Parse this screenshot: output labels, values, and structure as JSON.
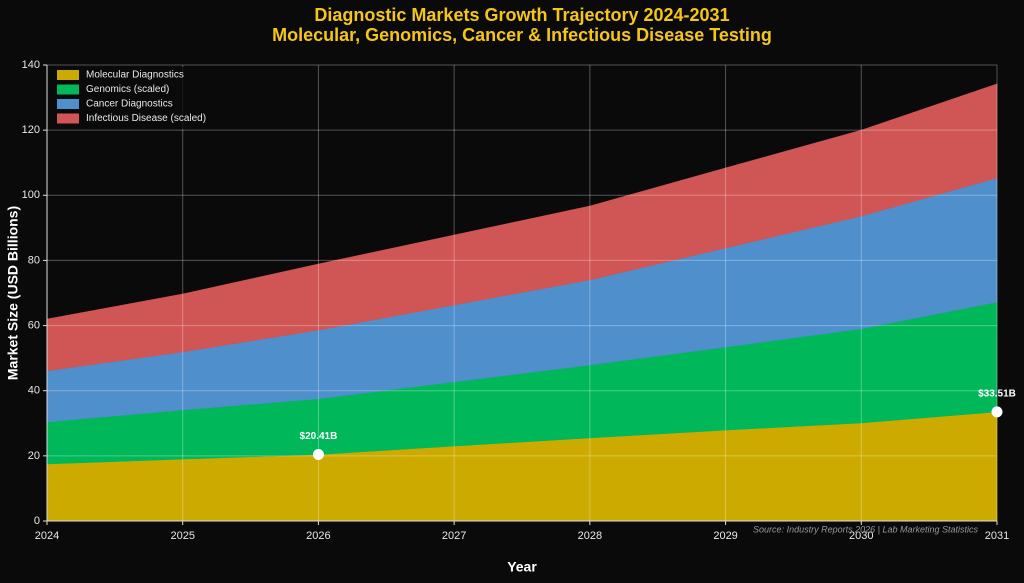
{
  "chart_data": {
    "type": "stacked_area",
    "title": "Diagnostic Markets Growth Trajectory 2024-2031",
    "subtitle": "Molecular, Genomics, Cancer & Infectious Disease Testing",
    "xlabel": "Year",
    "ylabel": "Market Size (USD Billions)",
    "x": [
      2024,
      2025,
      2026,
      2027,
      2028,
      2029,
      2030,
      2031
    ],
    "series": [
      {
        "name": "Molecular Diagnostics",
        "color": "#ccaa00",
        "values": [
          17.5,
          19.0,
          20.41,
          23.0,
          25.5,
          27.9,
          30.1,
          33.51
        ]
      },
      {
        "name": "Genomics (scaled)",
        "color": "#00b85a",
        "values": [
          12.9,
          15.1,
          17.1,
          19.7,
          22.4,
          25.5,
          28.9,
          33.7
        ]
      },
      {
        "name": "Cancer Diagnostics",
        "color": "#4e8fcc",
        "values": [
          15.7,
          17.8,
          21.1,
          23.6,
          26.1,
          30.4,
          34.6,
          38.1
        ]
      },
      {
        "name": "Infectious Disease (scaled)",
        "color": "#d05555",
        "values": [
          15.9,
          17.8,
          20.3,
          21.5,
          22.7,
          24.6,
          26.4,
          28.9
        ]
      }
    ],
    "annotations": [
      {
        "x": 2026,
        "y": 20.41,
        "label": "$20.41B"
      },
      {
        "x": 2031,
        "y": 33.51,
        "label": "$33.51B"
      }
    ],
    "source": "Source: Industry Reports 2026 | Lab Marketing Statistics",
    "xlim": [
      2024,
      2031
    ],
    "xticks": [
      2024,
      2025,
      2026,
      2027,
      2028,
      2029,
      2030,
      2031
    ],
    "ylim": [
      0,
      140
    ],
    "yticks": [
      0,
      20,
      40,
      60,
      80,
      100,
      120,
      140
    ],
    "grid": true,
    "legend": "upper left"
  }
}
